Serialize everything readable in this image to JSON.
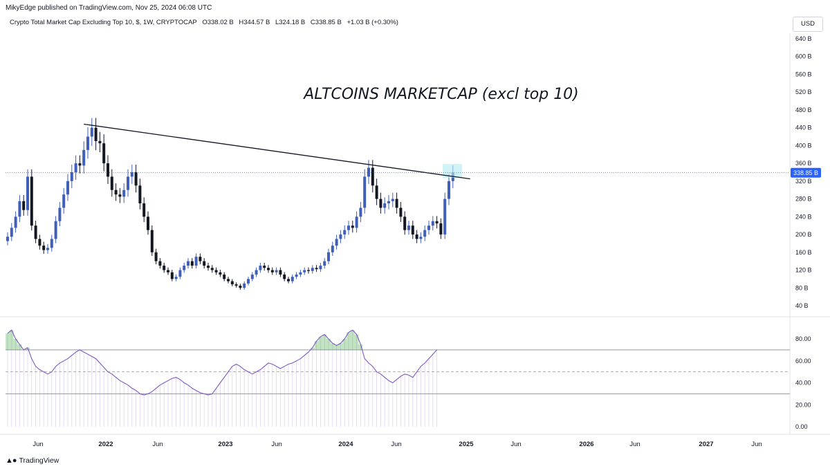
{
  "header": {
    "publisher": "MikyEdge published on TradingView.com, Nov 25, 2024 06:08 UTC",
    "symbol_title": "Crypto Total Market Cap Excluding Top 10, $, 1W, CRYPTOCAP",
    "ohlc": [
      "O338.02 B",
      "H344.57 B",
      "L324.18 B",
      "C338.85 B",
      "+1.03 B (+0.30%)"
    ],
    "currency_button": "USD"
  },
  "footer": {
    "brand": "TradingView",
    "logo_icon": "tradingview-logo-icon"
  },
  "colors": {
    "up": "#3f5fb8",
    "down": "#131722",
    "trendline": "#131722",
    "rsi_line": "#7e57c2",
    "rsi_bg": "#d1c4e9",
    "price_badge": "#2962ff",
    "highlight": "#b2ebf2"
  },
  "chart_data": [
    {
      "type": "candlestick",
      "title": "ALTCOINS MARKETCAP (excl top 10)",
      "y_unit": "B",
      "y_ticks": [
        "640 B",
        "600 B",
        "560 B",
        "520 B",
        "480 B",
        "440 B",
        "400 B",
        "360 B",
        "320 B",
        "280 B",
        "240 B",
        "200 B",
        "160 B",
        "120 B",
        "80 B",
        "40 B"
      ],
      "x_ticks": [
        "Jun",
        "2022",
        "Jun",
        "2023",
        "Jun",
        "2024",
        "Jun",
        "2025",
        "Jun",
        "2026",
        "Jun",
        "2027",
        "Jun"
      ],
      "last_price": 338.85,
      "last_price_label": "338.85 B",
      "trendline": {
        "start": [
          "2021-11",
          448
        ],
        "end": [
          "2024-11",
          325
        ]
      },
      "series_close": [
        195,
        215,
        240,
        275,
        255,
        330,
        220,
        190,
        175,
        165,
        170,
        190,
        230,
        260,
        290,
        320,
        340,
        360,
        355,
        390,
        420,
        440,
        410,
        405,
        360,
        330,
        300,
        290,
        285,
        300,
        330,
        340,
        310,
        270,
        240,
        210,
        160,
        140,
        130,
        120,
        115,
        100,
        105,
        120,
        130,
        140,
        130,
        150,
        140,
        130,
        125,
        120,
        115,
        110,
        100,
        95,
        88,
        85,
        80,
        90,
        100,
        110,
        120,
        130,
        125,
        120,
        115,
        120,
        110,
        100,
        95,
        105,
        110,
        115,
        120,
        118,
        125,
        122,
        130,
        140,
        160,
        175,
        190,
        200,
        210,
        220,
        215,
        240,
        260,
        330,
        350,
        310,
        280,
        260,
        270,
        275,
        280,
        260,
        240,
        210,
        220,
        200,
        190,
        195,
        210,
        220,
        230,
        225,
        200,
        280,
        320,
        338.85
      ]
    },
    {
      "type": "line",
      "name": "RSI",
      "y_ticks": [
        "80.00",
        "60.00",
        "40.00",
        "20.00",
        "0.00"
      ],
      "ylim": [
        0,
        100
      ],
      "levels": [
        70,
        50,
        30
      ],
      "values": [
        85,
        88,
        80,
        75,
        70,
        72,
        62,
        55,
        52,
        50,
        48,
        50,
        55,
        58,
        60,
        62,
        65,
        68,
        70,
        68,
        66,
        64,
        62,
        58,
        54,
        50,
        48,
        45,
        42,
        40,
        38,
        35,
        33,
        30,
        29,
        30,
        32,
        35,
        38,
        40,
        42,
        44,
        45,
        43,
        40,
        38,
        35,
        33,
        31,
        30,
        29,
        30,
        35,
        40,
        45,
        50,
        55,
        57,
        55,
        52,
        50,
        48,
        50,
        52,
        55,
        58,
        57,
        55,
        53,
        55,
        57,
        58,
        60,
        62,
        65,
        68,
        72,
        78,
        82,
        84,
        80,
        76,
        74,
        76,
        80,
        86,
        88,
        84,
        75,
        62,
        58,
        55,
        50,
        48,
        45,
        42,
        40,
        43,
        46,
        48,
        47,
        45,
        50,
        55,
        58,
        62,
        66,
        70
      ]
    }
  ]
}
